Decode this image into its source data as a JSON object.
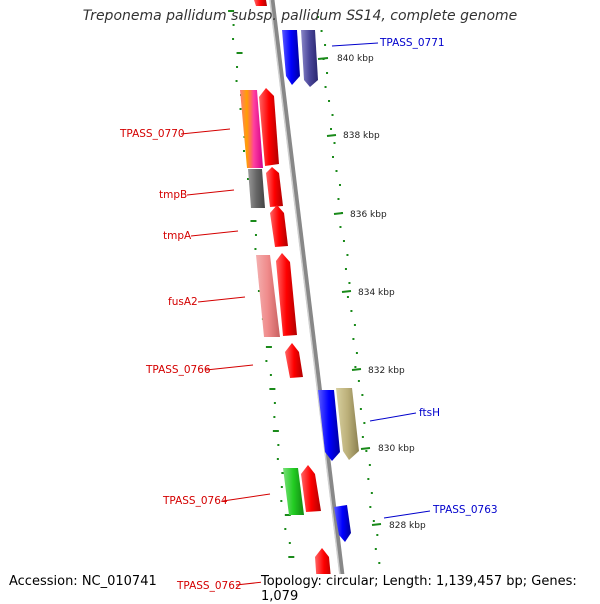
{
  "header": {
    "title": "Treponema pallidum subsp. pallidum SS14, complete genome"
  },
  "footer": {
    "accession": "Accession: NC_010741",
    "topology": "Topology: circular; Length: 1,139,457 bp; Genes: 1,079"
  },
  "genes_left": [
    {
      "label": "TPASS_0770",
      "color": "#d40000"
    },
    {
      "label": "tmpB",
      "color": "#d40000"
    },
    {
      "label": "tmpA",
      "color": "#d40000"
    },
    {
      "label": "fusA2",
      "color": "#d40000"
    },
    {
      "label": "TPASS_0766",
      "color": "#d40000"
    },
    {
      "label": "TPASS_0764",
      "color": "#d40000"
    },
    {
      "label": "TPASS_0762",
      "color": "#d40000"
    }
  ],
  "genes_right": [
    {
      "label": "TPASS_0771",
      "color": "#0000cc"
    },
    {
      "label": "ftsH",
      "color": "#0000cc"
    },
    {
      "label": "TPASS_0763",
      "color": "#0000cc"
    }
  ],
  "scale": {
    "ticks": [
      "840 kbp",
      "838 kbp",
      "836 kbp",
      "834 kbp",
      "832 kbp",
      "830 kbp",
      "828 kbp"
    ]
  },
  "colors": {
    "forward": "#ff0000",
    "reverse": "#0000ff",
    "backbone": "#888888",
    "gc_marks": "#1a8a1a"
  }
}
